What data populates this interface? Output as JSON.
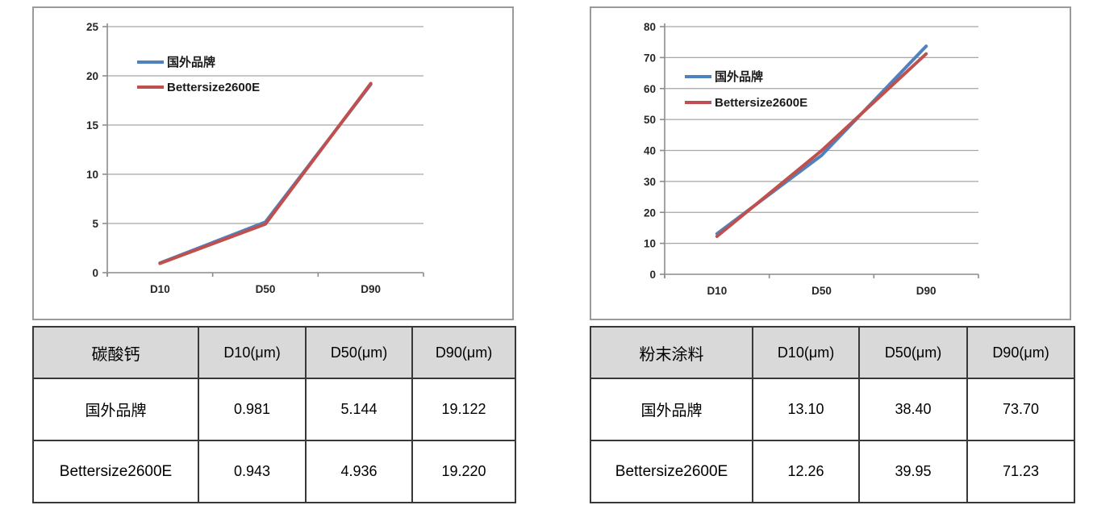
{
  "colors": {
    "series_blue": "#4f81bd",
    "series_red": "#c0504d",
    "gridline": "#a6a6a6",
    "axis": "#8c8c8c",
    "chart_border": "#9a9a9a",
    "table_border": "#383838",
    "table_header_bg": "#d9d9d9"
  },
  "chart_data": [
    {
      "name": "calcium-carbonate-chart",
      "type": "line",
      "title": "",
      "categories": [
        "D10",
        "D50",
        "D90"
      ],
      "series": [
        {
          "name": "国外品牌",
          "color_key": "series_blue",
          "slug": "foreign-brand",
          "values": [
            0.981,
            5.144,
            19.122
          ]
        },
        {
          "name": "Bettersize2600E",
          "color_key": "series_red",
          "slug": "bettersize2600e",
          "values": [
            0.943,
            4.936,
            19.22
          ]
        }
      ],
      "ylim": [
        0,
        25
      ],
      "ystep": 5,
      "grid": true,
      "legend_position": "inside-top-left"
    },
    {
      "name": "powder-coating-chart",
      "type": "line",
      "title": "",
      "categories": [
        "D10",
        "D50",
        "D90"
      ],
      "series": [
        {
          "name": "国外品牌",
          "color_key": "series_blue",
          "slug": "foreign-brand",
          "values": [
            13.1,
            38.4,
            73.7
          ]
        },
        {
          "name": "Bettersize2600E",
          "color_key": "series_red",
          "slug": "bettersize2600e",
          "values": [
            12.26,
            39.95,
            71.23
          ]
        }
      ],
      "ylim": [
        0,
        80
      ],
      "ystep": 10,
      "grid": true,
      "legend_position": "inside-top-left"
    }
  ],
  "tables": [
    {
      "name": "calcium-carbonate-table",
      "header": [
        "碳酸钙",
        "D10(μm)",
        "D50(μm)",
        "D90(μm)"
      ],
      "rows": [
        [
          "国外品牌",
          "0.981",
          "5.144",
          "19.122"
        ],
        [
          "Bettersize2600E",
          "0.943",
          "4.936",
          "19.220"
        ]
      ]
    },
    {
      "name": "powder-coating-table",
      "header": [
        "粉末涂料",
        "D10(μm)",
        "D50(μm)",
        "D90(μm)"
      ],
      "rows": [
        [
          "国外品牌",
          "13.10",
          "38.40",
          "73.70"
        ],
        [
          "Bettersize2600E",
          "12.26",
          "39.95",
          "71.23"
        ]
      ]
    }
  ]
}
